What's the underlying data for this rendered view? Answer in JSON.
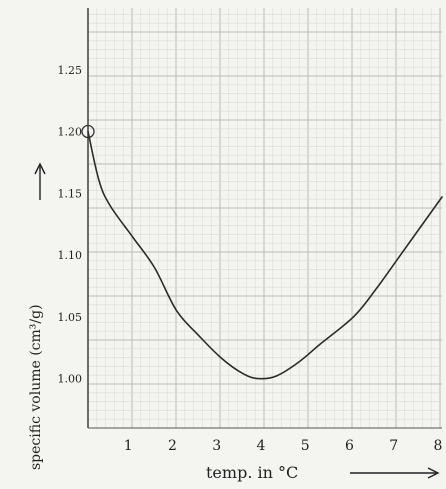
{
  "chart_data": {
    "type": "line",
    "title": "",
    "xlabel": "temp. in °C",
    "ylabel": "specific volume (cm³/g)",
    "x_ticks": [
      {
        "value": 1,
        "label": "1"
      },
      {
        "value": 2,
        "label": "2"
      },
      {
        "value": 3,
        "label": "3"
      },
      {
        "value": 4,
        "label": "4"
      },
      {
        "value": 5,
        "label": "5"
      },
      {
        "value": 6,
        "label": "6"
      },
      {
        "value": 7,
        "label": "7"
      },
      {
        "value": 8,
        "label": "8"
      }
    ],
    "y_ticks": [
      {
        "value": 1.0,
        "label": "1.00"
      },
      {
        "value": 1.05,
        "label": "1.05"
      },
      {
        "value": 1.1,
        "label": "1.10"
      },
      {
        "value": 1.15,
        "label": "1.15"
      },
      {
        "value": 1.2,
        "label": "1.20"
      },
      {
        "value": 1.25,
        "label": "1.25"
      }
    ],
    "xlim": [
      0,
      8
    ],
    "ylim": [
      0.96,
      1.3
    ],
    "grid": true,
    "series": [
      {
        "color": "#2b2b2b",
        "x": [
          0,
          0.25,
          0.5,
          1.0,
          1.5,
          2.0,
          2.5,
          3.0,
          3.5,
          3.85,
          4.25,
          4.75,
          5.25,
          6.0,
          6.5,
          7.0,
          7.5,
          8.0
        ],
        "y": [
          1.2,
          1.16,
          1.14,
          1.115,
          1.09,
          1.055,
          1.035,
          1.017,
          1.004,
          1.0,
          1.002,
          1.013,
          1.028,
          1.05,
          1.072,
          1.097,
          1.122,
          1.147
        ]
      }
    ],
    "annotations": [
      {
        "type": "circle",
        "x": 0,
        "y": 1.2
      }
    ]
  }
}
